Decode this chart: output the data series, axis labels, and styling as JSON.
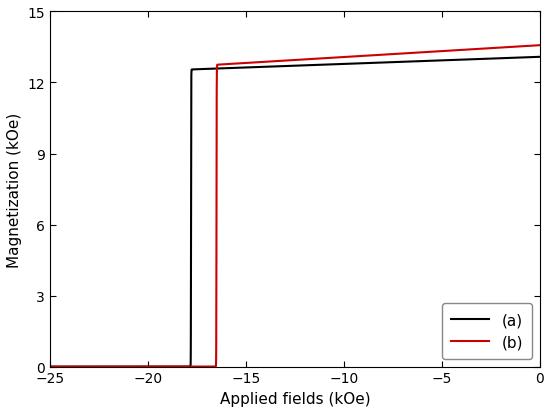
{
  "title": "",
  "xlabel": "Applied fields (kOe)",
  "ylabel": "Magnetization (kOe)",
  "xlim": [
    -25,
    0
  ],
  "ylim": [
    0,
    15
  ],
  "xticks": [
    -25,
    -20,
    -15,
    -10,
    -5,
    0
  ],
  "yticks": [
    0,
    3,
    6,
    9,
    12,
    15
  ],
  "curve_a_color": "#000000",
  "curve_b_color": "#cc0000",
  "legend_labels": [
    "(a)",
    "(b)"
  ],
  "saturation_mag_a": 12.55,
  "saturation_mag_b": 12.75,
  "sat_slope_a": 0.03,
  "sat_slope_b": 0.05,
  "coercive_a": -17.8,
  "coercive_b": -16.5,
  "knee_sharpness_a": 120,
  "knee_sharpness_b": 100,
  "figsize": [
    5.51,
    4.14
  ],
  "dpi": 100
}
